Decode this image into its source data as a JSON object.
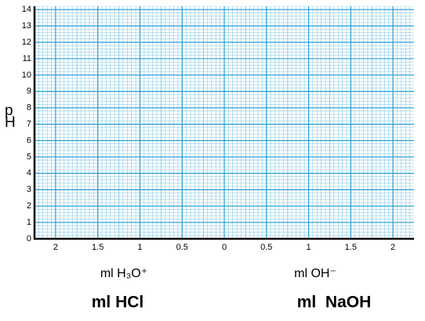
{
  "chart_data": {
    "type": "line",
    "ylabel": "pH",
    "xlabels": [
      "ml H₃O⁺",
      "ml OH⁻"
    ],
    "reagent_labels": [
      "ml HCl",
      "ml  NaOH"
    ],
    "xlim": [
      -2.25,
      2.25
    ],
    "xticks": [
      {
        "value": -2,
        "label": "2"
      },
      {
        "value": -1.5,
        "label": "1.5"
      },
      {
        "value": -1,
        "label": "1"
      },
      {
        "value": -0.5,
        "label": "0.5"
      },
      0,
      0.5,
      1,
      1.5,
      2
    ],
    "ylim": [
      0,
      14.2
    ],
    "yticks": [
      0,
      1,
      2,
      3,
      4,
      5,
      6,
      7,
      8,
      9,
      10,
      11,
      12,
      13,
      14
    ],
    "grid": true,
    "grid_color": "#2b9fd8",
    "series": []
  }
}
